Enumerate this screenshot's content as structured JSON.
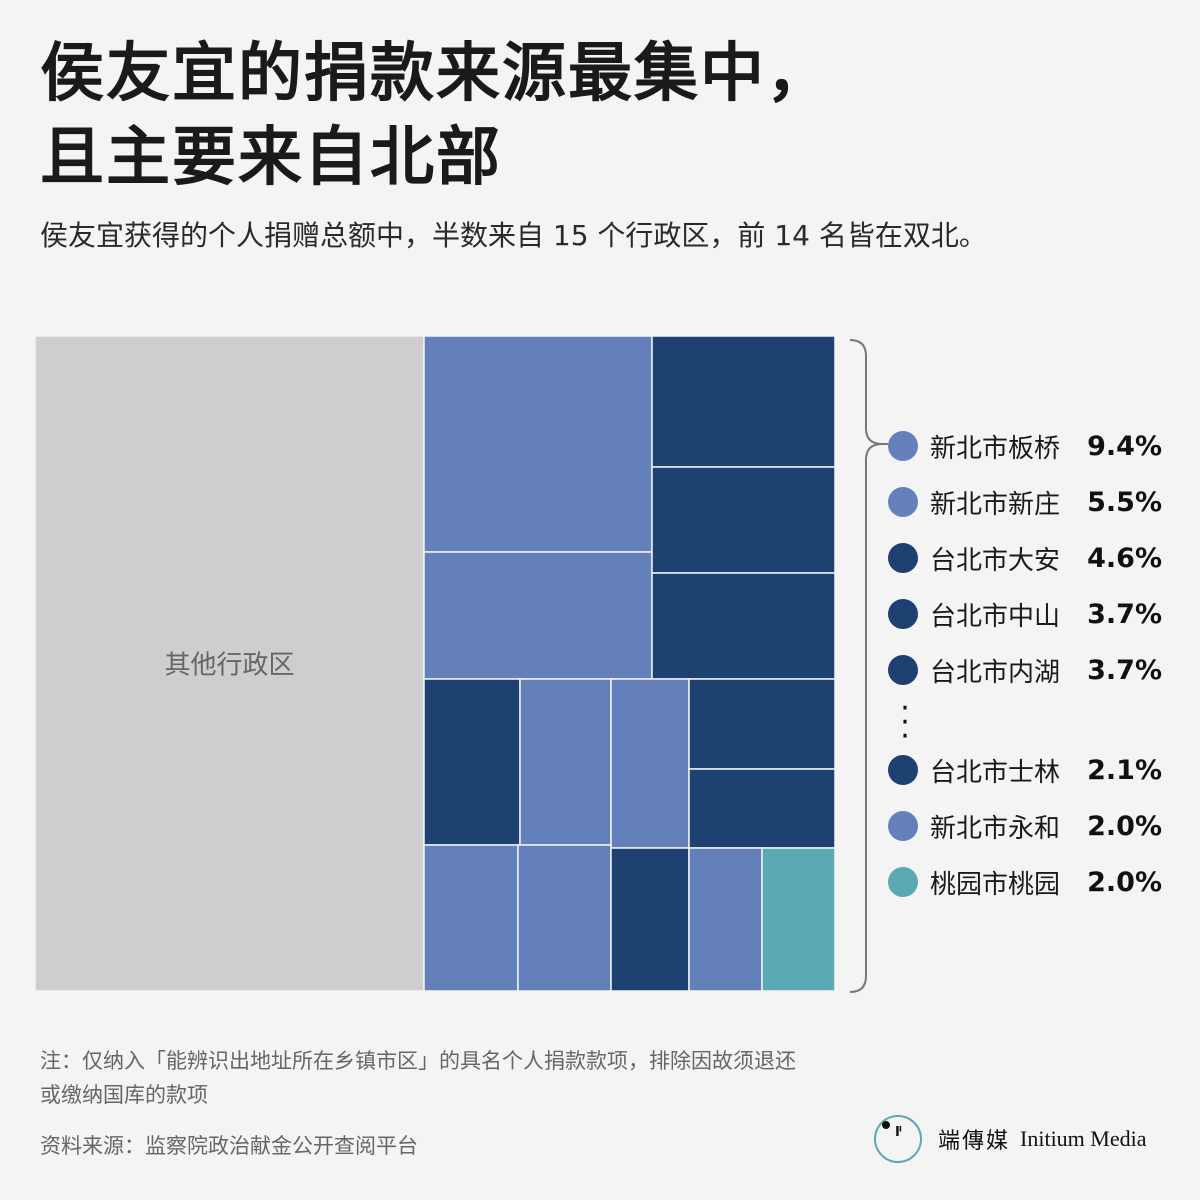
{
  "header": {
    "title_line1": "侯友宜的捐款来源最集中，",
    "title_line2": "且主要来自北部",
    "subtitle": "侯友宜获得的个人捐赠总额中，半数来自 15 个行政区，前 14 名皆在双北。"
  },
  "colors": {
    "new_taipei": "#6480ba",
    "taipei": "#1d4272",
    "taoyuan": "#5ba9b4",
    "other": "#cfcdcf",
    "background": "#f4f4f4"
  },
  "chart_data": {
    "type": "treemap",
    "unit": "%",
    "other": {
      "label": "其他行政区"
    },
    "legend": [
      {
        "label": "新北市板桥",
        "value_text": "9.4%",
        "value": 9.4,
        "group": "new_taipei"
      },
      {
        "label": "新北市新庄",
        "value_text": "5.5%",
        "value": 5.5,
        "group": "new_taipei"
      },
      {
        "label": "台北市大安",
        "value_text": "4.6%",
        "value": 4.6,
        "group": "taipei"
      },
      {
        "label": "台北市中山",
        "value_text": "3.7%",
        "value": 3.7,
        "group": "taipei"
      },
      {
        "label": "台北市内湖",
        "value_text": "3.7%",
        "value": 3.7,
        "group": "taipei"
      },
      {
        "label": "台北市士林",
        "value_text": "2.1%",
        "value": 2.1,
        "group": "taipei"
      },
      {
        "label": "新北市永和",
        "value_text": "2.0%",
        "value": 2.0,
        "group": "new_taipei"
      },
      {
        "label": "桃园市桃园",
        "value_text": "2.0%",
        "value": 2.0,
        "group": "taoyuan"
      }
    ],
    "blocks": [
      {
        "group": "new_taipei",
        "value": 9.4
      },
      {
        "group": "new_taipei",
        "value": 5.5
      },
      {
        "group": "taipei",
        "value": 4.6
      },
      {
        "group": "taipei",
        "value": 3.7
      },
      {
        "group": "taipei",
        "value": 3.7
      },
      {
        "group": "taipei",
        "value": 2.6
      },
      {
        "group": "new_taipei",
        "value": 2.5
      },
      {
        "group": "new_taipei",
        "value": 2.3
      },
      {
        "group": "taipei",
        "value": 2.2
      },
      {
        "group": "taipei",
        "value": 2.1
      },
      {
        "group": "new_taipei",
        "value": 2.0
      },
      {
        "group": "new_taipei",
        "value": 2.0
      },
      {
        "group": "taipei",
        "value": 2.0
      },
      {
        "group": "new_taipei",
        "value": 2.0
      },
      {
        "group": "taoyuan",
        "value": 2.0
      }
    ]
  },
  "footer": {
    "note_line1": "注：仅纳入「能辨识出地址所在乡镇市区」的具名个人捐款款项，排除因故须退还",
    "note_line2": "或缴纳国库的款项",
    "source": "资料来源：监察院政治献金公开查阅平台",
    "brand_cn": "端傳媒",
    "brand_en": "Initium Media",
    "brand_glyph": "Iᴵ"
  }
}
